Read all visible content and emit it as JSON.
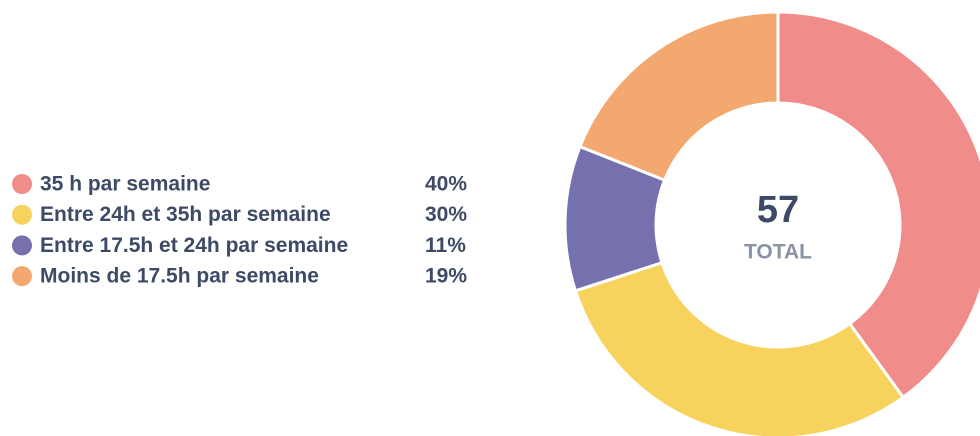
{
  "chart_data": {
    "type": "donut",
    "categories": [
      "35 h par semaine",
      "Entre 24h et 35h par semaine",
      "Entre 17.5h et 24h par semaine",
      "Moins de 17.5h par semaine"
    ],
    "values": [
      40,
      30,
      11,
      19
    ],
    "value_labels": [
      "40%",
      "30%",
      "11%",
      "19%"
    ],
    "colors": [
      "#f08c8a",
      "#f7d35e",
      "#7571ae",
      "#f2a86f"
    ],
    "total": 57,
    "total_label": "TOTAL"
  }
}
